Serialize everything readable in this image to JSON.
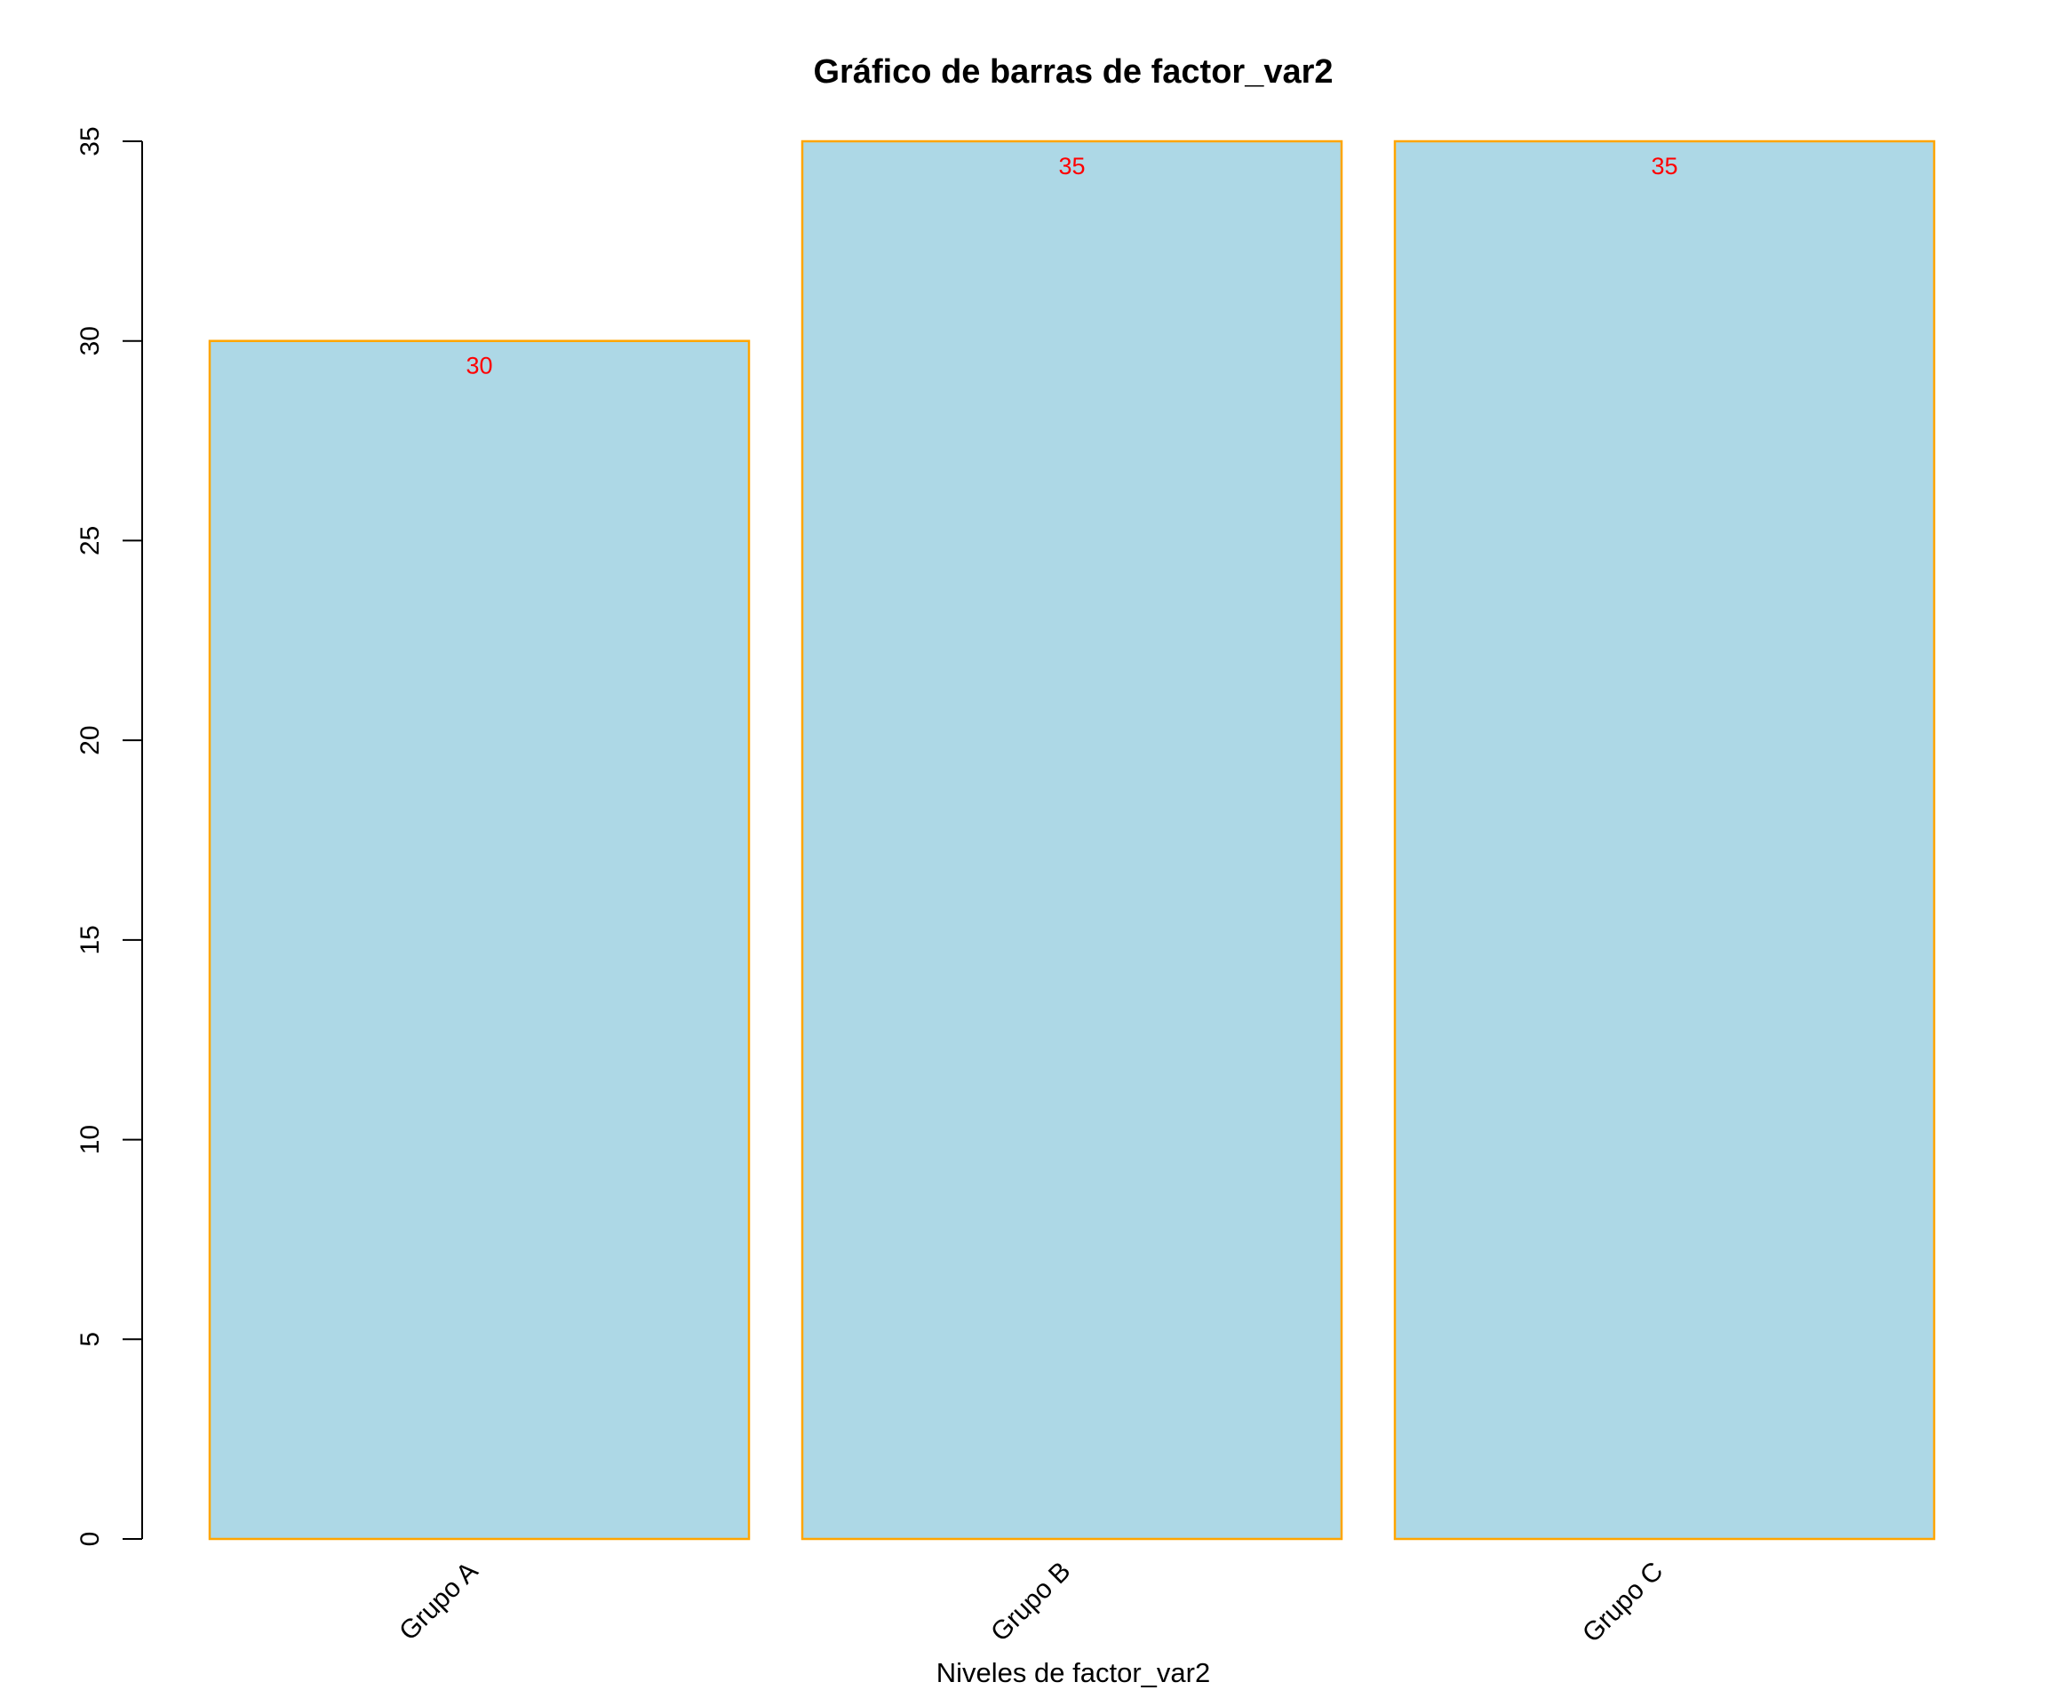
{
  "chart_data": {
    "type": "bar",
    "title": "Gráfico de barras de factor_var2",
    "xlabel": "Niveles de factor_var2",
    "ylabel": "",
    "categories": [
      "Grupo A",
      "Grupo B",
      "Grupo C"
    ],
    "values": [
      30,
      35,
      35
    ],
    "data_labels": [
      "30",
      "35",
      "35"
    ],
    "ylim": [
      0,
      35
    ],
    "yticks": [
      0,
      5,
      10,
      15,
      20,
      25,
      30,
      35
    ],
    "ytick_labels": [
      "0",
      "5",
      "10",
      "15",
      "20",
      "25",
      "30",
      "35"
    ],
    "grid": false,
    "legend": "none",
    "x_tick_rotation": "45",
    "colors": {
      "bar_fill": "#ADD8E6",
      "bar_border": "#FFA500",
      "data_label": "#FF0000",
      "axis": "#000000"
    }
  }
}
